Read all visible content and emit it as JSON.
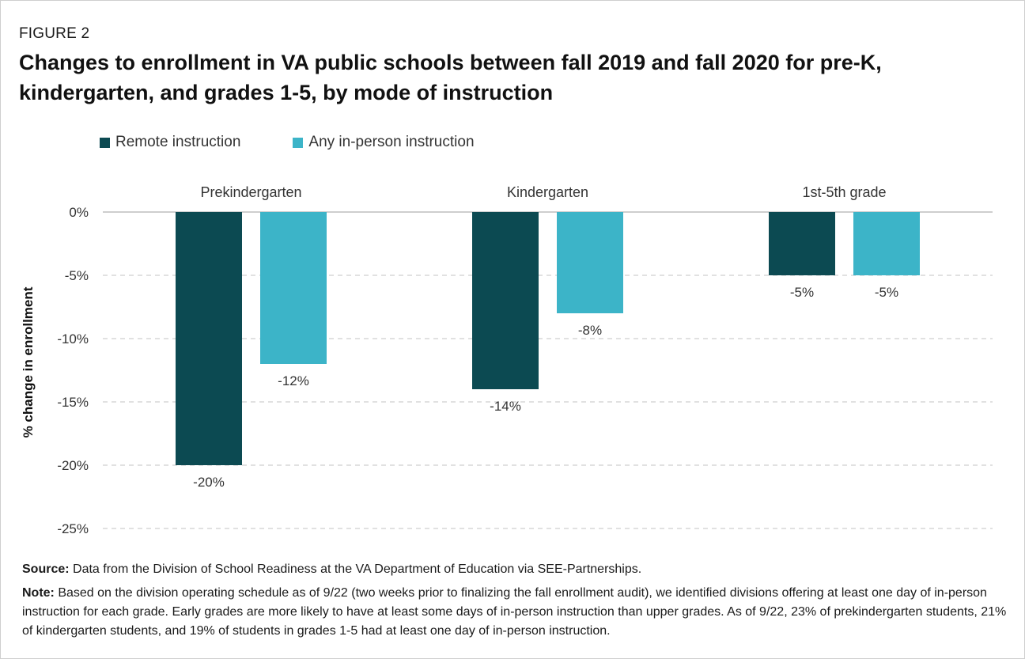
{
  "figure": {
    "eyebrow": "FIGURE 2",
    "title": "Changes to enrollment in VA public schools between fall 2019 and fall 2020 for pre-K, kindergarten, and grades 1-5, by mode of instruction"
  },
  "legend": [
    {
      "label": "Remote instruction",
      "color": "#0c4a52"
    },
    {
      "label": "Any in-person instruction",
      "color": "#3cb4c8"
    }
  ],
  "chart_data": {
    "type": "bar",
    "categories": [
      "Prekindergarten",
      "Kindergarten",
      "1st-5th grade"
    ],
    "series": [
      {
        "name": "Remote instruction",
        "values": [
          -20,
          -14,
          -5
        ],
        "labels": [
          "-20%",
          "-14%",
          "-5%"
        ],
        "color": "#0c4a52"
      },
      {
        "name": "Any in-person instruction",
        "values": [
          -12,
          -8,
          -5
        ],
        "labels": [
          "-12%",
          "-8%",
          "-5%"
        ],
        "color": "#3cb4c8"
      }
    ],
    "ylabel": "% change in enrollment",
    "ylim": [
      -25,
      0
    ],
    "yticks": [
      0,
      -5,
      -10,
      -15,
      -20,
      -25
    ],
    "ytick_labels": [
      "0%",
      "-5%",
      "-10%",
      "-15%",
      "-20%",
      "-25%"
    ],
    "grid": true,
    "legend_position": "top-left",
    "category_labels_position": "top"
  },
  "notes": {
    "source_label": "Source:",
    "source_text": " Data from the Division of School Readiness at the VA Department of Education via SEE-Partnerships.",
    "note_label": "Note:",
    "note_text": " Based on the division operating schedule as of 9/22 (two weeks prior to finalizing the fall enrollment audit), we identified divisions offering at least one day of in-person instruction for each grade. Early grades are more likely to have at least some days of in-person instruction than upper grades. As of 9/22, 23% of prekindergarten students, 21% of kindergarten students, and 19% of students in grades 1-5 had at least one day of in-person instruction."
  }
}
